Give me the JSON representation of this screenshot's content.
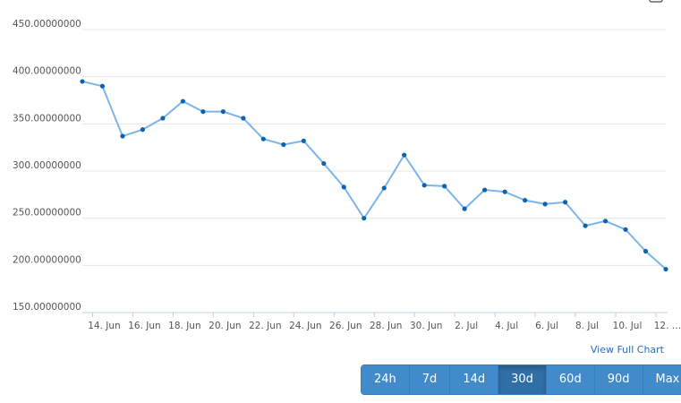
{
  "chart_data": {
    "type": "line",
    "categories": [
      null,
      "14. Jun",
      null,
      "16. Jun",
      null,
      "18. Jun",
      null,
      "20. Jun",
      null,
      "22. Jun",
      null,
      "24. Jun",
      null,
      "26. Jun",
      null,
      "28. Jun",
      null,
      "30. Jun",
      null,
      "2. Jul",
      null,
      "4. Jul",
      null,
      "6. Jul",
      null,
      "8. Jul",
      null,
      "10. Jul",
      null,
      "12. …"
    ],
    "values": [
      395,
      390,
      337,
      344,
      356,
      374,
      363,
      363,
      356,
      334,
      328,
      332,
      308,
      283,
      250,
      282,
      317,
      285,
      284,
      260,
      280,
      278,
      269,
      265,
      267,
      242,
      247,
      238,
      215,
      196
    ],
    "color": "#7cb5ec",
    "marker_color": "#0d63b0",
    "ylim": [
      150,
      450
    ],
    "yticks": [
      {
        "value": 150,
        "label": "150.00000000"
      },
      {
        "value": 200,
        "label": "200.00000000"
      },
      {
        "value": 250,
        "label": "250.00000000"
      },
      {
        "value": 300,
        "label": "300.00000000"
      },
      {
        "value": 350,
        "label": "350.00000000"
      },
      {
        "value": 400,
        "label": "400.00000000"
      },
      {
        "value": 450,
        "label": "450.00000000"
      }
    ],
    "grid": true
  },
  "link": "View Full Chart",
  "buttons": [
    {
      "label": "24h",
      "active": false
    },
    {
      "label": "7d",
      "active": false
    },
    {
      "label": "14d",
      "active": false
    },
    {
      "label": "30d",
      "active": true
    },
    {
      "label": "60d",
      "active": false
    },
    {
      "label": "90d",
      "active": false
    },
    {
      "label": "Max",
      "active": false
    }
  ]
}
